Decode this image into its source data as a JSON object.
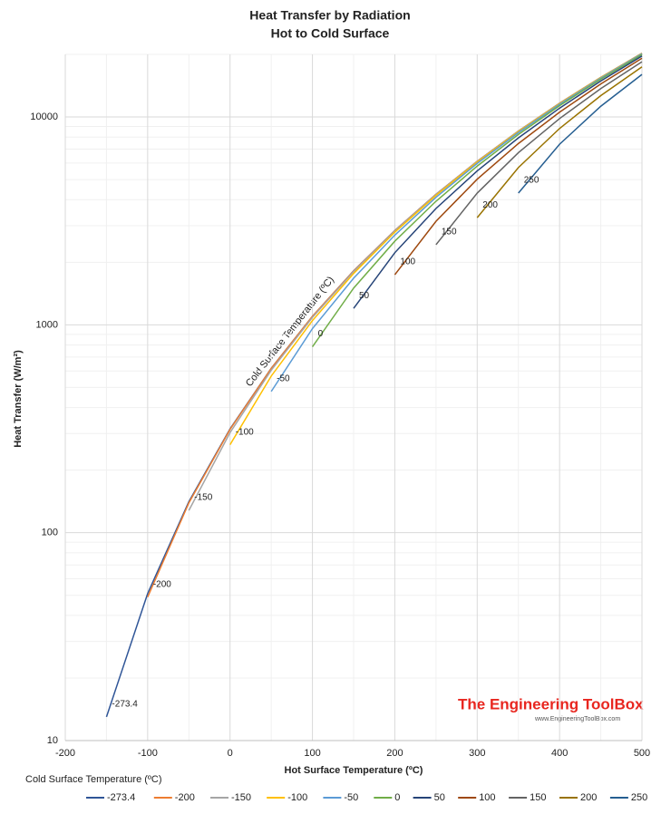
{
  "chart_data": {
    "type": "line",
    "title": "Heat Transfer by Radiation",
    "subtitle": "Hot to Cold Surface",
    "x_label": "Hot Surface Temperature (ºC)",
    "y_label": "Heat Transfer (W/m²)",
    "legend_title": "Cold Surface Temperature (ºC)",
    "annotation": "Cold Surface Temperature (ºC)",
    "watermark": "The Engineering ToolBox",
    "watermark_url": "www.EngineeringToolBox.com",
    "x": [
      -150,
      -100,
      -50,
      0,
      50,
      100,
      150,
      200,
      250,
      300,
      350,
      400,
      450,
      500
    ],
    "series": [
      {
        "name": "-273.4",
        "color": "#2f5597",
        "values": [
          13,
          51,
          141,
          316,
          618,
          1099,
          1818,
          2842,
          4247,
          6119,
          8550,
          11642,
          15506,
          20260
        ]
      },
      {
        "name": "-200",
        "color": "#ed7d31",
        "values": [
          null,
          49,
          139,
          314,
          617,
          1098,
          1816,
          2840,
          4246,
          6117,
          8548,
          11641,
          15504,
          20258
        ]
      },
      {
        "name": "-150",
        "color": "#a5a5a5",
        "values": [
          null,
          null,
          128,
          303,
          605,
          1086,
          1805,
          2829,
          4234,
          6106,
          8537,
          11629,
          15493,
          20247
        ]
      },
      {
        "name": "-100",
        "color": "#ffc000",
        "values": [
          null,
          null,
          null,
          265,
          567,
          1048,
          1767,
          2791,
          4196,
          6068,
          8499,
          11591,
          15455,
          20209
        ]
      },
      {
        "name": "-50",
        "color": "#5b9bd5",
        "values": [
          null,
          null,
          null,
          null,
          478,
          959,
          1677,
          2701,
          4107,
          5978,
          8409,
          11502,
          15365,
          20119
        ]
      },
      {
        "name": "0",
        "color": "#70ad47",
        "values": [
          null,
          null,
          null,
          null,
          null,
          784,
          1502,
          2526,
          3932,
          5803,
          8234,
          11327,
          15190,
          19944
        ]
      },
      {
        "name": "50",
        "color": "#264478",
        "values": [
          null,
          null,
          null,
          null,
          null,
          null,
          1200,
          2223,
          3629,
          5500,
          7931,
          11024,
          14888,
          19642
        ]
      },
      {
        "name": "100",
        "color": "#9e480e",
        "values": [
          null,
          null,
          null,
          null,
          null,
          null,
          null,
          1742,
          3148,
          5019,
          7450,
          10543,
          14407,
          19161
        ]
      },
      {
        "name": "150",
        "color": "#636363",
        "values": [
          null,
          null,
          null,
          null,
          null,
          null,
          null,
          null,
          2429,
          4301,
          6732,
          9824,
          13688,
          18442
        ]
      },
      {
        "name": "200",
        "color": "#997300",
        "values": [
          null,
          null,
          null,
          null,
          null,
          null,
          null,
          null,
          null,
          3277,
          5708,
          8800,
          12664,
          17418
        ]
      },
      {
        "name": "250",
        "color": "#255e91",
        "values": [
          null,
          null,
          null,
          null,
          null,
          null,
          null,
          null,
          null,
          null,
          4303,
          7395,
          11259,
          16013
        ]
      }
    ],
    "xlim": [
      -200,
      500
    ],
    "xticks": [
      -200,
      -100,
      0,
      100,
      200,
      300,
      400,
      500
    ],
    "ylim": [
      10,
      20000
    ],
    "yticks": [
      10,
      100,
      1000,
      10000
    ],
    "y_log": true,
    "grid": true,
    "minor_grid": true,
    "legend": "bottom"
  }
}
